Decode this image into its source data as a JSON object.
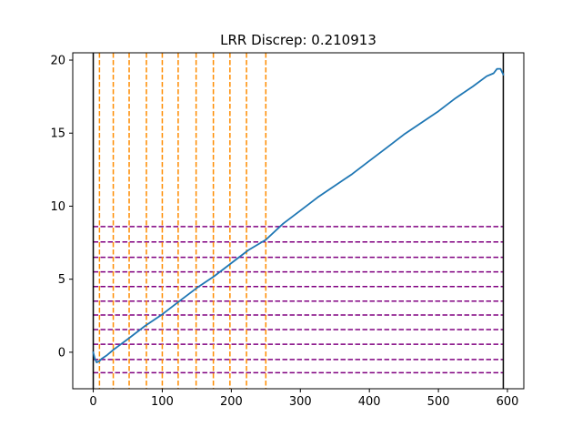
{
  "chart_data": {
    "type": "line",
    "title": "LRR Discrep: 0.210913",
    "xlabel": "",
    "ylabel": "",
    "xlim": [
      -29.7,
      623.7
    ],
    "ylim": [
      -2.5,
      20.5
    ],
    "x_ticks": [
      0,
      100,
      200,
      300,
      400,
      500,
      600
    ],
    "y_ticks": [
      0,
      5,
      10,
      15,
      20
    ],
    "x_tick_labels": [
      "0",
      "100",
      "200",
      "300",
      "400",
      "500",
      "600"
    ],
    "y_tick_labels": [
      "0",
      "5",
      "10",
      "15",
      "20"
    ],
    "grid": false,
    "series": [
      {
        "color": "#1f77b4",
        "points": [
          [
            0,
            0
          ],
          [
            2,
            -0.4
          ],
          [
            5,
            -0.7
          ],
          [
            9,
            -0.6
          ],
          [
            12,
            -0.45
          ],
          [
            20,
            -0.2
          ],
          [
            30,
            0.2
          ],
          [
            50,
            0.9
          ],
          [
            75,
            1.8
          ],
          [
            100,
            2.6
          ],
          [
            125,
            3.5
          ],
          [
            150,
            4.4
          ],
          [
            175,
            5.2
          ],
          [
            200,
            6.1
          ],
          [
            225,
            7.0
          ],
          [
            250,
            7.7
          ],
          [
            275,
            8.8
          ],
          [
            300,
            9.7
          ],
          [
            325,
            10.6
          ],
          [
            350,
            11.4
          ],
          [
            375,
            12.2
          ],
          [
            400,
            13.1
          ],
          [
            425,
            14.0
          ],
          [
            450,
            14.9
          ],
          [
            475,
            15.7
          ],
          [
            500,
            16.5
          ],
          [
            525,
            17.4
          ],
          [
            550,
            18.2
          ],
          [
            570,
            18.9
          ],
          [
            580,
            19.1
          ],
          [
            585,
            19.4
          ],
          [
            590,
            19.4
          ],
          [
            594,
            19.0
          ]
        ]
      }
    ],
    "vertical_boundaries": {
      "color": "#000000",
      "x": [
        0,
        594
      ]
    },
    "vertical_markers": {
      "color": "#ff8c00",
      "x": [
        9,
        29,
        52,
        77,
        100,
        123,
        149,
        174,
        198,
        222,
        250
      ]
    },
    "horizontal_markers": {
      "color": "#800080",
      "x_range": [
        0,
        594
      ],
      "y": [
        -1.4,
        -0.5,
        0.55,
        1.55,
        2.55,
        3.5,
        4.5,
        5.5,
        6.5,
        7.55,
        8.6
      ]
    }
  }
}
